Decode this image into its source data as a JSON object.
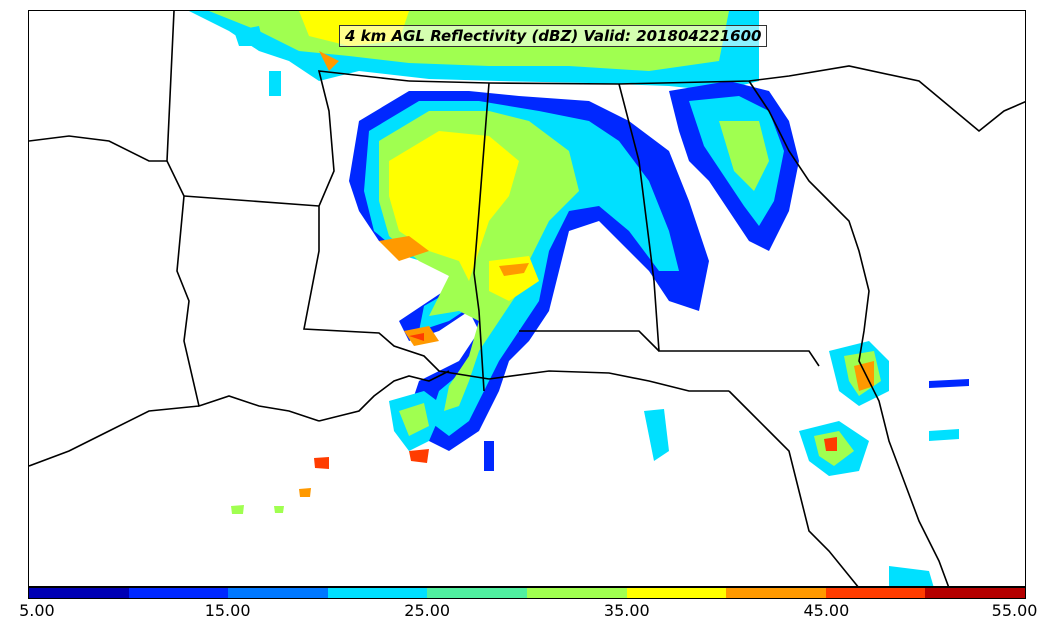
{
  "title": "4 km AGL Reflectivity (dBZ) Valid: 201804221600",
  "colorbar": {
    "colors": [
      "#0000b4",
      "#0028ff",
      "#0078ff",
      "#00e0ff",
      "#50f0a0",
      "#a0ff50",
      "#ffff00",
      "#ff9900",
      "#ff3c00",
      "#b40000"
    ],
    "labels": [
      "5.00",
      "15.00",
      "25.00",
      "35.00",
      "45.00",
      "55.00"
    ]
  }
}
